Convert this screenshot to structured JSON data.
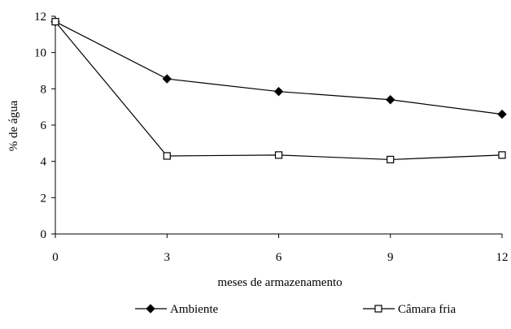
{
  "chart_data": {
    "type": "line",
    "xlabel": "meses de armazenamento",
    "ylabel": "% de água",
    "x": [
      0,
      3,
      6,
      9,
      12
    ],
    "xlim": [
      0,
      12
    ],
    "ylim": [
      0,
      12
    ],
    "xticks": [
      0,
      3,
      6,
      9,
      12
    ],
    "yticks": [
      0,
      2,
      4,
      6,
      8,
      10,
      12
    ],
    "grid": false,
    "legend_position": "bottom",
    "series": [
      {
        "name": "Ambiente",
        "values": [
          11.7,
          8.55,
          7.85,
          7.4,
          6.6
        ],
        "marker": "filled-diamond",
        "color": "#000000"
      },
      {
        "name": "Câmara fria",
        "values": [
          11.7,
          4.3,
          4.35,
          4.1,
          4.35
        ],
        "marker": "open-square",
        "color": "#000000"
      }
    ]
  }
}
